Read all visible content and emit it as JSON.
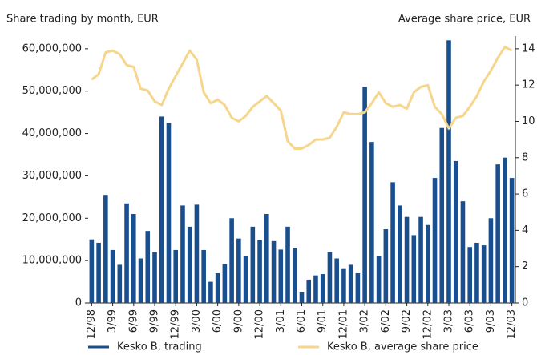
{
  "chart_data": {
    "type": "bar_line",
    "ylabel": "Share trading by month, EUR",
    "y2label": "Average share price, EUR",
    "categories": [
      "12/98",
      null,
      null,
      "3/99",
      null,
      null,
      "6/99",
      null,
      null,
      "9/99",
      null,
      null,
      "12/99",
      null,
      null,
      "3/00",
      null,
      null,
      "6/00",
      null,
      null,
      "9/00",
      null,
      null,
      "12/00",
      null,
      null,
      "3/01",
      null,
      null,
      "6/01",
      null,
      null,
      "9/01",
      null,
      null,
      "12/01",
      null,
      null,
      "3/02",
      null,
      null,
      "6/02",
      null,
      null,
      "9/02",
      null,
      null,
      "12/02",
      null,
      null,
      "3/03",
      null,
      null,
      "6/03",
      null,
      null,
      "9/03",
      null,
      null,
      "12/03"
    ],
    "series": [
      {
        "name": "Kesko B, trading",
        "color": "#1a4f8f",
        "kind": "bar",
        "values": [
          15000000,
          14200000,
          25500000,
          12500000,
          9000000,
          23500000,
          21000000,
          10500000,
          17000000,
          12000000,
          44000000,
          42500000,
          12500000,
          23000000,
          18000000,
          23200000,
          12500000,
          5000000,
          7000000,
          9200000,
          20000000,
          15200000,
          11000000,
          18000000,
          14800000,
          21000000,
          14600000,
          12600000,
          18000000,
          13000000,
          2500000,
          5500000,
          6500000,
          6800000,
          12000000,
          10500000,
          8000000,
          9000000,
          7000000,
          51000000,
          38000000,
          11000000,
          17400000,
          28500000,
          23000000,
          20300000,
          16000000,
          20300000,
          18400000,
          29500000,
          41300000,
          62000000,
          33500000,
          24000000,
          13200000,
          14200000,
          13600000,
          20000000,
          32700000,
          34300000,
          29500000
        ]
      },
      {
        "name": "Kesko B, average share price",
        "color": "#f6d68c",
        "kind": "line",
        "axis": "y2",
        "values": [
          12.3,
          12.6,
          13.8,
          13.9,
          13.7,
          13.1,
          13.0,
          11.8,
          11.7,
          11.1,
          10.9,
          11.8,
          12.5,
          13.2,
          13.9,
          13.4,
          11.6,
          11.0,
          11.2,
          10.9,
          10.2,
          10.0,
          10.3,
          10.8,
          11.1,
          11.4,
          11.0,
          10.6,
          8.9,
          8.5,
          8.5,
          8.7,
          9.0,
          9.0,
          9.1,
          9.7,
          10.5,
          10.4,
          10.4,
          10.5,
          11.0,
          11.6,
          11.0,
          10.8,
          10.9,
          10.7,
          11.6,
          11.9,
          12.0,
          10.8,
          10.4,
          9.6,
          10.2,
          10.3,
          10.8,
          11.4,
          12.2,
          12.8,
          13.5,
          14.1,
          13.9
        ]
      }
    ],
    "ylim": [
      0,
      63000000
    ],
    "yticks": [
      0,
      {
        "value": 10000000,
        "label": "10,000,000"
      },
      {
        "value": 20000000,
        "label": "20,000,000"
      },
      {
        "value": 30000000,
        "label": "30,000,000"
      },
      {
        "value": 40000000,
        "label": "40,000,000"
      },
      {
        "value": 50000000,
        "label": "50,000,000"
      },
      {
        "value": 60000000,
        "label": "60,000,000"
      }
    ],
    "y2lim": [
      0,
      14.7
    ],
    "y2ticks": [
      0,
      2,
      4,
      6,
      8,
      10,
      12,
      14
    ],
    "legend": "bottom"
  }
}
